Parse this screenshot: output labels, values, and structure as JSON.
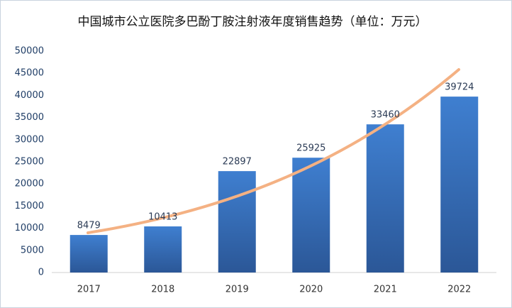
{
  "chart_data": {
    "type": "bar",
    "title": "中国城市公立医院多巴酚丁胺注射液年度销售趋势（单位：万元）",
    "categories": [
      "2017",
      "2018",
      "2019",
      "2020",
      "2021",
      "2022"
    ],
    "values": [
      8479,
      10413,
      22897,
      25925,
      33460,
      39724
    ],
    "color": "#3b78c6",
    "ylim": [
      0,
      50000
    ],
    "yticks": [
      0,
      5000,
      10000,
      15000,
      20000,
      25000,
      30000,
      35000,
      40000,
      45000,
      50000
    ],
    "grid": false
  }
}
